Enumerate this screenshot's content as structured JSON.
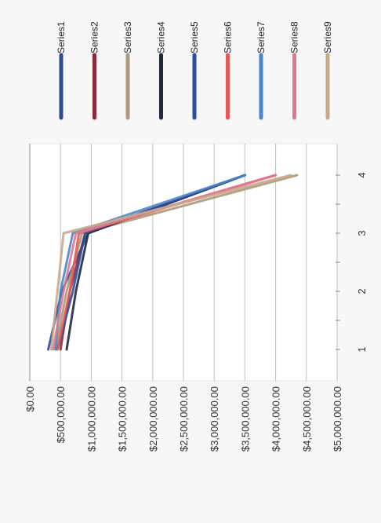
{
  "chart_data": {
    "type": "line",
    "orientation": "rotated-90",
    "categories": [
      "1",
      "2",
      "3",
      "4"
    ],
    "y_ticks": [
      "$0.00",
      "$500,000.00",
      "$1,000,000.00",
      "$1,500,000.00",
      "$2,000,000.00",
      "$2,500,000.00",
      "$3,000,000.00",
      "$3,500,000.00",
      "$4,000,000.00",
      "$4,500,000.00",
      "$5,000,000.00"
    ],
    "ylim": [
      0,
      5000000
    ],
    "grid": true,
    "legend_position": "top",
    "series": [
      {
        "name": "Series1",
        "color": "#2d4f8f",
        "values": [
          300000,
          520000,
          950000,
          3500000
        ]
      },
      {
        "name": "Series2",
        "color": "#8b2a3a",
        "values": [
          500000,
          650000,
          900000,
          3500000
        ]
      },
      {
        "name": "Series3",
        "color": "#a89a7a",
        "values": [
          420000,
          600000,
          850000,
          4350000
        ]
      },
      {
        "name": "Series4",
        "color": "#1e2a3c",
        "values": [
          600000,
          750000,
          950000,
          3500000
        ]
      },
      {
        "name": "Series5",
        "color": "#2e4f9c",
        "values": [
          450000,
          700000,
          900000,
          3500000
        ]
      },
      {
        "name": "Series6",
        "color": "#e85a5a",
        "values": [
          450000,
          650000,
          800000,
          4000000
        ]
      },
      {
        "name": "Series7",
        "color": "#4a86c8",
        "values": [
          420000,
          500000,
          700000,
          3500000
        ]
      },
      {
        "name": "Series8",
        "color": "#e07890",
        "values": [
          380000,
          550000,
          750000,
          4000000
        ]
      },
      {
        "name": "Series9",
        "color": "#c8a88a",
        "values": [
          350000,
          450000,
          550000,
          4250000
        ]
      }
    ]
  }
}
